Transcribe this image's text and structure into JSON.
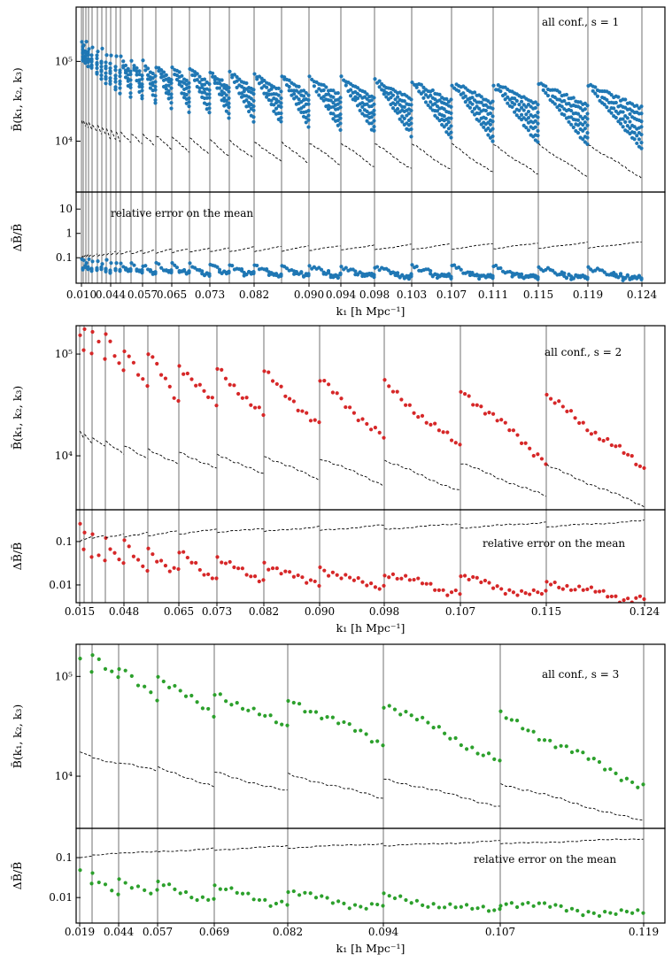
{
  "chart_data": [
    {
      "type": "scatter",
      "annotation": "all conf.,  s = 1",
      "error_annotation": "relative error on the mean",
      "ylabel": "B̄(k₁, k₂, k₃)",
      "error_ylabel": "ΔB̄/B̄",
      "xlabel": "k₁ [h Mpc⁻¹]",
      "y_scale": "log",
      "ylim": [
        2300,
        480000
      ],
      "error_ylim": [
        0.009,
        50
      ],
      "xlim": [
        0,
        665
      ],
      "y_ticks": [
        {
          "value": 100000,
          "label": "10⁵"
        },
        {
          "value": 10000,
          "label": "10⁴"
        }
      ],
      "error_y_ticks": [
        {
          "value": 10,
          "label": "10"
        },
        {
          "value": 1,
          "label": "1"
        },
        {
          "value": 0.1,
          "label": "0.1"
        }
      ],
      "data_color": "#1f77b4",
      "model_color": "#000000",
      "k1_boundaries": [
        6,
        8,
        11,
        14,
        18,
        24,
        29,
        34,
        39,
        45,
        50,
        62,
        75,
        90,
        108,
        128,
        151,
        173,
        201,
        232,
        263,
        299,
        337,
        379,
        424,
        471,
        522,
        578,
        639
      ],
      "tick_labels": [
        {
          "index": 6,
          "label": "0.010"
        },
        {
          "index": 39,
          "label": "0.044"
        },
        {
          "index": 75,
          "label": "0.057"
        },
        {
          "index": 108,
          "label": "0.065"
        },
        {
          "index": 151,
          "label": "0.073"
        },
        {
          "index": 201,
          "label": "0.082"
        },
        {
          "index": 263,
          "label": "0.090"
        },
        {
          "index": 299,
          "label": "0.094"
        },
        {
          "index": 337,
          "label": "0.098"
        },
        {
          "index": 379,
          "label": "0.103"
        },
        {
          "index": 424,
          "label": "0.107"
        },
        {
          "index": 471,
          "label": "0.111"
        },
        {
          "index": 522,
          "label": "0.115"
        },
        {
          "index": 578,
          "label": "0.119"
        },
        {
          "index": 639,
          "label": "0.124"
        }
      ],
      "segment_data_max": [
        180000,
        170000,
        160000,
        150000,
        150000,
        140000,
        130000,
        130000,
        120000,
        115000,
        110000,
        100000,
        95000,
        90000,
        85000,
        80000,
        75000,
        72000,
        68000,
        65000,
        62000,
        60000,
        58000,
        56000,
        55000,
        53000,
        52000,
        50000
      ],
      "segment_data_min": [
        100000,
        95000,
        90000,
        80000,
        70000,
        60000,
        55000,
        50000,
        45000,
        40000,
        37000,
        33000,
        30000,
        27000,
        24000,
        22000,
        20000,
        18000,
        17000,
        15000,
        14000,
        13000,
        12000,
        11000,
        10000,
        9500,
        9000,
        8000
      ],
      "segment_model_max": [
        18000,
        17500,
        17000,
        16500,
        16000,
        15500,
        15000,
        14500,
        14000,
        13500,
        13000,
        12500,
        12000,
        11500,
        11000,
        10800,
        10500,
        10200,
        10000,
        9800,
        9600,
        9400,
        9300,
        9200,
        9100,
        9000,
        9000,
        9000
      ],
      "segment_model_min": [
        16000,
        15000,
        14500,
        14000,
        13000,
        12500,
        12000,
        11000,
        10500,
        10000,
        9500,
        9000,
        8500,
        8000,
        7500,
        7000,
        6500,
        6000,
        5500,
        5200,
        5000,
        4800,
        4500,
        4300,
        4000,
        3800,
        3600,
        3500
      ],
      "data_error_first_segment": [
        0.08,
        0.04
      ],
      "data_error_last_segment": [
        0.04,
        0.015
      ],
      "model_error_first_segment": [
        0.1,
        0.12
      ],
      "model_error_last_segment": [
        0.25,
        0.45
      ]
    },
    {
      "type": "scatter",
      "annotation": "all conf.,  s = 2",
      "error_annotation": "relative error on the mean",
      "ylabel": "B̄(k₁, k₂, k₃)",
      "error_ylabel": "ΔB̄/B̄",
      "xlabel": "k₁ [h Mpc⁻¹]",
      "y_scale": "log",
      "ylim": [
        2950,
        190000
      ],
      "error_ylim": [
        0.0039,
        0.54
      ],
      "xlim": [
        0,
        665
      ],
      "y_ticks": [
        {
          "value": 100000,
          "label": "10⁵"
        },
        {
          "value": 10000,
          "label": "10⁴"
        }
      ],
      "error_y_ticks": [
        {
          "value": 0.1,
          "label": "0.1"
        },
        {
          "value": 0.01,
          "label": "0.01"
        }
      ],
      "data_color": "#d62728",
      "model_color": "#000000",
      "k1_boundaries": [
        4,
        9,
        18,
        33,
        54,
        81,
        116,
        159,
        212,
        275,
        348,
        434,
        531,
        642
      ],
      "tick_labels": [
        {
          "index": 4,
          "label": "0.015"
        },
        {
          "index": 54,
          "label": "0.048"
        },
        {
          "index": 116,
          "label": "0.065"
        },
        {
          "index": 159,
          "label": "0.073"
        },
        {
          "index": 212,
          "label": "0.082"
        },
        {
          "index": 275,
          "label": "0.090"
        },
        {
          "index": 348,
          "label": "0.098"
        },
        {
          "index": 434,
          "label": "0.107"
        },
        {
          "index": 531,
          "label": "0.115"
        },
        {
          "index": 642,
          "label": "0.124"
        }
      ],
      "segment_data_max": [
        160000,
        160000,
        158000,
        155000,
        120000,
        100000,
        80000,
        72000,
        65000,
        55000,
        50000,
        45000,
        38000
      ],
      "segment_data_min": [
        110000,
        100000,
        90000,
        70000,
        45000,
        35000,
        30000,
        25000,
        20000,
        15000,
        12000,
        9000,
        7500
      ],
      "segment_model_max": [
        17500,
        16000,
        15000,
        13500,
        12500,
        11500,
        11000,
        10500,
        10000,
        9500,
        9000,
        8500,
        8000
      ],
      "segment_model_min": [
        15000,
        13000,
        12000,
        10500,
        9500,
        8500,
        7500,
        6500,
        5800,
        5200,
        4500,
        4000,
        3200
      ],
      "data_error_first_segment": [
        0.25,
        0.06
      ],
      "data_error_last_segment": [
        0.012,
        0.005
      ],
      "model_error_first_segment": [
        0.1,
        0.12
      ],
      "model_error_last_segment": [
        0.22,
        0.3
      ]
    },
    {
      "type": "scatter",
      "annotation": "all conf.,  s = 3",
      "error_annotation": "relative error on the mean",
      "ylabel": "B̄(k₁, k₂, k₃)",
      "error_ylabel": "ΔB̄/B̄",
      "xlabel": "k₁ [h Mpc⁻¹]",
      "y_scale": "log",
      "ylim": [
        3000,
        210000
      ],
      "error_ylim": [
        0.0023,
        0.54
      ],
      "xlim": [
        0,
        665
      ],
      "y_ticks": [
        {
          "value": 100000,
          "label": "10⁵"
        },
        {
          "value": 10000,
          "label": "10⁴"
        }
      ],
      "error_y_ticks": [
        {
          "value": 0.1,
          "label": "0.1"
        },
        {
          "value": 0.01,
          "label": "0.01"
        }
      ],
      "data_color": "#2ca02c",
      "model_color": "#000000",
      "k1_boundaries": [
        4,
        18,
        48,
        92,
        156,
        239,
        347,
        479,
        641
      ],
      "tick_labels": [
        {
          "index": 4,
          "label": "0.019"
        },
        {
          "index": 48,
          "label": "0.044"
        },
        {
          "index": 92,
          "label": "0.057"
        },
        {
          "index": 156,
          "label": "0.069"
        },
        {
          "index": 239,
          "label": "0.082"
        },
        {
          "index": 347,
          "label": "0.094"
        },
        {
          "index": 479,
          "label": "0.107"
        },
        {
          "index": 641,
          "label": "0.119"
        }
      ],
      "segment_data_max": [
        150000,
        160000,
        120000,
        100000,
        70000,
        60000,
        55000,
        40000
      ],
      "segment_data_min": [
        120000,
        90000,
        65000,
        40000,
        30000,
        21000,
        14000,
        8000
      ],
      "segment_model_max": [
        17500,
        15000,
        13500,
        12000,
        11000,
        10500,
        9500,
        8500
      ],
      "segment_model_min": [
        16000,
        13000,
        11500,
        8000,
        7000,
        6000,
        5000,
        3500
      ],
      "data_error_first_segment": [
        0.05,
        0.02
      ],
      "data_error_last_segment": [
        0.008,
        0.004
      ],
      "model_error_first_segment": [
        0.1,
        0.11
      ],
      "model_error_last_segment": [
        0.22,
        0.3
      ]
    }
  ]
}
